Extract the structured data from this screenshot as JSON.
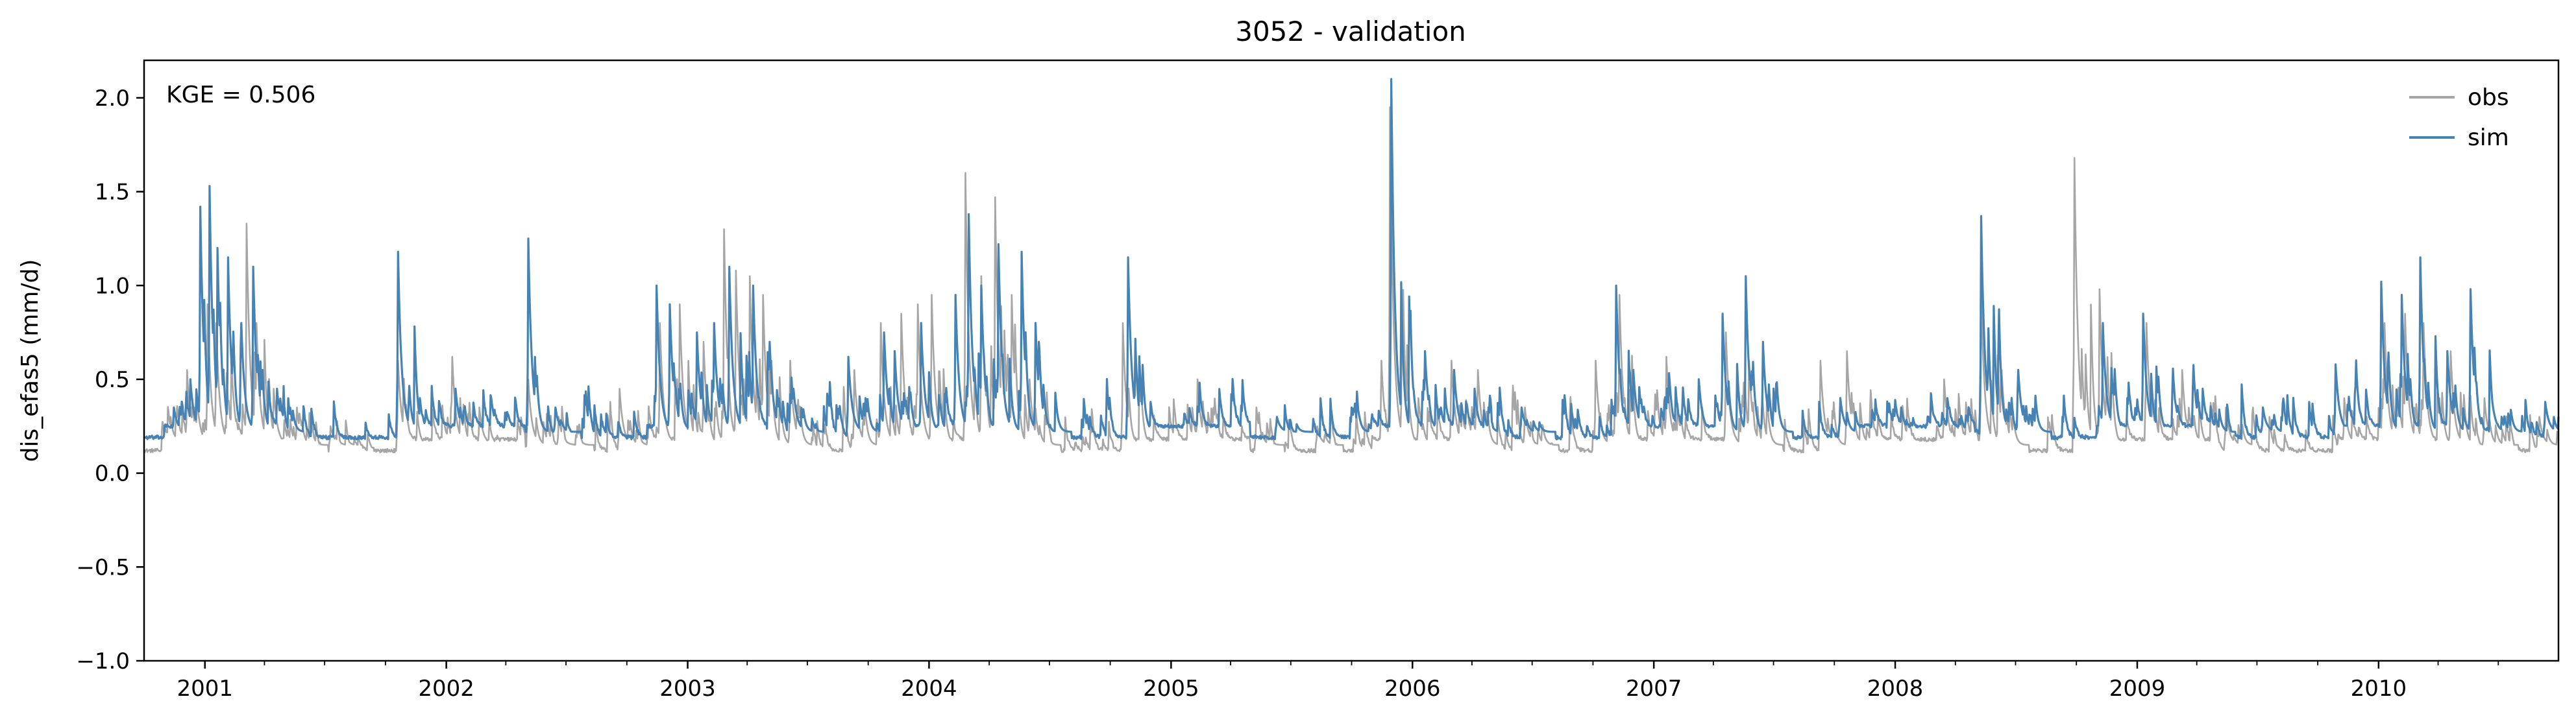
{
  "chart_data": {
    "type": "line",
    "title": "3052 - validation",
    "ylabel": "dis_efas5 (mm/d)",
    "xlabel": "",
    "xlim": [
      "2000-10-01",
      "2010-09-30"
    ],
    "ylim": [
      -1.0,
      2.2
    ],
    "yticks": [
      -1.0,
      -0.5,
      0.0,
      0.5,
      1.0,
      1.5,
      2.0
    ],
    "ytick_labels": [
      "−1.0",
      "−0.5",
      "0.0",
      "0.5",
      "1.0",
      "1.5",
      "2.0"
    ],
    "xticks": [
      "2001-01-01",
      "2002-01-01",
      "2003-01-01",
      "2004-01-01",
      "2005-01-01",
      "2006-01-01",
      "2007-01-01",
      "2008-01-01",
      "2009-01-01",
      "2010-01-01"
    ],
    "xtick_labels": [
      "2001",
      "2002",
      "2003",
      "2004",
      "2005",
      "2006",
      "2007",
      "2008",
      "2009",
      "2010"
    ],
    "annotation": "KGE = 0.506",
    "legend": {
      "placement": "top-right",
      "entries": [
        "obs",
        "sim"
      ]
    },
    "grid": false,
    "series": [
      {
        "name": "obs",
        "color": "#a6a6a6",
        "baseline": 0.15,
        "peaks": [
          [
            "2000-11-10",
            0.3
          ],
          [
            "2000-12-05",
            0.55
          ],
          [
            "2000-12-20",
            0.4
          ],
          [
            "2001-01-05",
            0.9
          ],
          [
            "2001-01-18",
            0.8
          ],
          [
            "2001-02-10",
            0.6
          ],
          [
            "2001-03-05",
            1.33
          ],
          [
            "2001-03-20",
            0.8
          ],
          [
            "2001-04-15",
            0.45
          ],
          [
            "2001-05-20",
            0.35
          ],
          [
            "2001-07-10",
            0.25
          ],
          [
            "2001-10-20",
            0.6
          ],
          [
            "2002-01-10",
            0.62
          ],
          [
            "2002-02-20",
            0.35
          ],
          [
            "2002-05-05",
            0.5
          ],
          [
            "2002-06-20",
            0.3
          ],
          [
            "2002-09-20",
            0.45
          ],
          [
            "2002-11-20",
            0.8
          ],
          [
            "2002-12-20",
            0.9
          ],
          [
            "2003-01-25",
            0.7
          ],
          [
            "2003-02-25",
            1.3
          ],
          [
            "2003-03-15",
            1.08
          ],
          [
            "2003-04-05",
            1.05
          ],
          [
            "2003-04-25",
            0.95
          ],
          [
            "2003-06-05",
            0.6
          ],
          [
            "2003-09-10",
            0.55
          ],
          [
            "2003-10-20",
            0.8
          ],
          [
            "2003-11-20",
            0.85
          ],
          [
            "2003-12-15",
            0.9
          ],
          [
            "2004-01-05",
            0.95
          ],
          [
            "2004-02-25",
            1.6
          ],
          [
            "2004-03-20",
            1.05
          ],
          [
            "2004-04-10",
            1.47
          ],
          [
            "2004-05-05",
            0.95
          ],
          [
            "2004-06-01",
            0.5
          ],
          [
            "2004-10-20",
            0.8
          ],
          [
            "2005-02-10",
            0.5
          ],
          [
            "2005-05-10",
            0.35
          ],
          [
            "2005-08-10",
            0.25
          ],
          [
            "2005-11-15",
            0.6
          ],
          [
            "2005-11-28",
            1.95
          ],
          [
            "2006-01-10",
            0.4
          ],
          [
            "2006-03-01",
            0.6
          ],
          [
            "2006-04-10",
            0.55
          ],
          [
            "2006-06-20",
            0.35
          ],
          [
            "2006-10-05",
            0.6
          ],
          [
            "2006-11-10",
            0.95
          ],
          [
            "2007-01-20",
            0.62
          ],
          [
            "2007-04-20",
            0.75
          ],
          [
            "2007-05-25",
            0.6
          ],
          [
            "2007-09-10",
            0.6
          ],
          [
            "2007-10-20",
            0.65
          ],
          [
            "2008-03-15",
            0.5
          ],
          [
            "2008-05-10",
            0.95
          ],
          [
            "2008-06-10",
            0.55
          ],
          [
            "2008-09-28",
            1.68
          ],
          [
            "2008-11-05",
            0.98
          ],
          [
            "2009-01-15",
            0.8
          ],
          [
            "2009-03-10",
            0.55
          ],
          [
            "2009-05-15",
            0.35
          ],
          [
            "2009-11-10",
            0.4
          ],
          [
            "2010-01-10",
            0.8
          ],
          [
            "2010-02-10",
            0.85
          ],
          [
            "2010-03-10",
            0.8
          ],
          [
            "2010-04-20",
            0.65
          ],
          [
            "2010-06-10",
            0.4
          ],
          [
            "2010-09-01",
            0.3
          ]
        ]
      },
      {
        "name": "sim",
        "color": "#4682b4",
        "baseline": 0.22,
        "peaks": [
          [
            "2000-11-15",
            0.35
          ],
          [
            "2000-12-10",
            0.5
          ],
          [
            "2000-12-25",
            1.42
          ],
          [
            "2001-01-08",
            1.53
          ],
          [
            "2001-01-20",
            1.2
          ],
          [
            "2001-02-05",
            1.15
          ],
          [
            "2001-02-25",
            0.8
          ],
          [
            "2001-03-15",
            1.1
          ],
          [
            "2001-04-20",
            0.45
          ],
          [
            "2001-10-20",
            1.18
          ],
          [
            "2002-01-15",
            0.45
          ],
          [
            "2002-03-10",
            0.4
          ],
          [
            "2002-05-05",
            1.25
          ],
          [
            "2002-06-15",
            0.35
          ],
          [
            "2002-11-15",
            1.0
          ],
          [
            "2002-12-05",
            0.9
          ],
          [
            "2003-01-15",
            0.75
          ],
          [
            "2003-02-10",
            0.8
          ],
          [
            "2003-03-05",
            1.1
          ],
          [
            "2003-04-10",
            1.0
          ],
          [
            "2003-05-05",
            0.7
          ],
          [
            "2003-06-10",
            0.45
          ],
          [
            "2003-09-01",
            0.62
          ],
          [
            "2003-10-25",
            0.75
          ],
          [
            "2003-11-10",
            0.65
          ],
          [
            "2003-12-20",
            0.8
          ],
          [
            "2004-02-10",
            0.95
          ],
          [
            "2004-03-01",
            1.38
          ],
          [
            "2004-03-20",
            1.0
          ],
          [
            "2004-04-15",
            1.22
          ],
          [
            "2004-05-20",
            1.18
          ],
          [
            "2004-06-10",
            0.8
          ],
          [
            "2004-10-28",
            1.15
          ],
          [
            "2005-02-10",
            0.35
          ],
          [
            "2005-06-10",
            0.3
          ],
          [
            "2005-10-01",
            0.35
          ],
          [
            "2005-11-30",
            2.1
          ],
          [
            "2006-01-20",
            0.65
          ],
          [
            "2006-03-05",
            0.55
          ],
          [
            "2006-04-05",
            0.45
          ],
          [
            "2006-06-15",
            0.35
          ],
          [
            "2006-11-05",
            1.0
          ],
          [
            "2006-12-01",
            0.55
          ],
          [
            "2007-03-10",
            0.5
          ],
          [
            "2007-04-15",
            0.85
          ],
          [
            "2007-05-20",
            1.05
          ],
          [
            "2007-06-15",
            0.7
          ],
          [
            "2007-10-10",
            0.4
          ],
          [
            "2008-01-10",
            0.35
          ],
          [
            "2008-03-20",
            0.4
          ],
          [
            "2008-05-10",
            1.37
          ],
          [
            "2008-06-05",
            0.65
          ],
          [
            "2008-07-05",
            0.55
          ],
          [
            "2008-11-10",
            0.8
          ],
          [
            "2009-01-10",
            0.85
          ],
          [
            "2009-04-10",
            0.45
          ],
          [
            "2009-07-10",
            0.35
          ],
          [
            "2009-10-28",
            0.58
          ],
          [
            "2010-01-05",
            1.02
          ],
          [
            "2010-02-05",
            0.95
          ],
          [
            "2010-03-05",
            1.15
          ],
          [
            "2010-04-15",
            0.65
          ],
          [
            "2010-05-20",
            0.98
          ],
          [
            "2010-06-20",
            0.45
          ],
          [
            "2010-09-10",
            0.38
          ]
        ]
      }
    ]
  }
}
